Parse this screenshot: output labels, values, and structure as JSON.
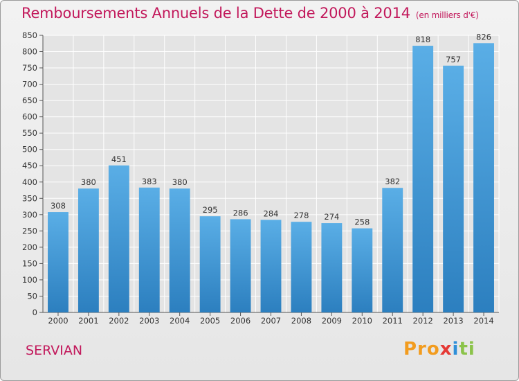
{
  "header": {
    "title": "Remboursements Annuels de la Dette de 2000 à 2014",
    "subtitle": "(en milliers d'€)"
  },
  "footer": {
    "commune": "SERVIAN",
    "brand_parts": [
      "Pro",
      "x",
      "i",
      "ti"
    ]
  },
  "colors": {
    "title": "#c2185b",
    "bar_light": "#5aaee6",
    "bar_dark": "#2c7fbf",
    "grid": "#ffffff",
    "axis": "#555555"
  },
  "chart_data": {
    "type": "bar",
    "title": "Remboursements Annuels de la Dette de 2000 à 2014",
    "unit": "(en milliers d'€)",
    "categories": [
      "2000",
      "2001",
      "2002",
      "2003",
      "2004",
      "2005",
      "2006",
      "2007",
      "2008",
      "2009",
      "2010",
      "2011",
      "2012",
      "2013",
      "2014"
    ],
    "values": [
      308,
      380,
      451,
      383,
      380,
      295,
      286,
      284,
      278,
      274,
      258,
      382,
      818,
      757,
      826
    ],
    "ylim": [
      0,
      850
    ],
    "yticks": [
      0,
      50,
      100,
      150,
      200,
      250,
      300,
      350,
      400,
      450,
      500,
      550,
      600,
      650,
      700,
      750,
      800,
      850
    ],
    "grid": true,
    "xlabel": "",
    "ylabel": ""
  }
}
